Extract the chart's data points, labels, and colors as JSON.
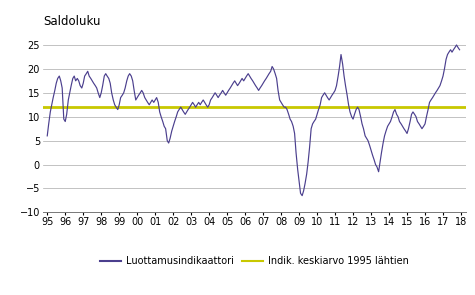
{
  "title": "Saldoluku",
  "xlim_left": 1994.75,
  "xlim_right": 2018.25,
  "ylim_bottom": -10,
  "ylim_top": 27,
  "mean_value": 12.1,
  "line_color": "#4B3F8E",
  "mean_color": "#C8C800",
  "background_color": "#ffffff",
  "grid_color": "#aaaaaa",
  "legend_label_line": "Luottamusindikaattori",
  "legend_label_mean": "Indik. keskiarvo 1995 lähtien",
  "yticks": [
    -10,
    -5,
    0,
    5,
    10,
    15,
    20,
    25
  ],
  "xtick_labels": [
    "95",
    "96",
    "97",
    "98",
    "99",
    "00",
    "01",
    "02",
    "03",
    "04",
    "05",
    "06",
    "07",
    "08",
    "09",
    "10",
    "11",
    "12",
    "13",
    "14",
    "15",
    "16",
    "17",
    "18"
  ],
  "xtick_years": [
    1995,
    1996,
    1997,
    1998,
    1999,
    2000,
    2001,
    2002,
    2003,
    2004,
    2005,
    2006,
    2007,
    2008,
    2009,
    2010,
    2011,
    2012,
    2013,
    2014,
    2015,
    2016,
    2017,
    2018
  ],
  "data": [
    [
      1995.0,
      6.0
    ],
    [
      1995.08,
      8.5
    ],
    [
      1995.17,
      11.0
    ],
    [
      1995.25,
      12.5
    ],
    [
      1995.33,
      14.0
    ],
    [
      1995.42,
      15.5
    ],
    [
      1995.5,
      17.0
    ],
    [
      1995.58,
      18.0
    ],
    [
      1995.67,
      18.5
    ],
    [
      1995.75,
      17.5
    ],
    [
      1995.83,
      16.0
    ],
    [
      1995.92,
      9.5
    ],
    [
      1996.0,
      9.0
    ],
    [
      1996.08,
      10.5
    ],
    [
      1996.17,
      13.5
    ],
    [
      1996.25,
      15.0
    ],
    [
      1996.33,
      16.5
    ],
    [
      1996.42,
      18.0
    ],
    [
      1996.5,
      18.5
    ],
    [
      1996.58,
      17.5
    ],
    [
      1996.67,
      18.0
    ],
    [
      1996.75,
      17.5
    ],
    [
      1996.83,
      16.5
    ],
    [
      1996.92,
      16.0
    ],
    [
      1997.0,
      17.0
    ],
    [
      1997.08,
      18.5
    ],
    [
      1997.17,
      19.0
    ],
    [
      1997.25,
      19.5
    ],
    [
      1997.33,
      18.5
    ],
    [
      1997.42,
      18.0
    ],
    [
      1997.5,
      17.5
    ],
    [
      1997.58,
      17.0
    ],
    [
      1997.67,
      16.5
    ],
    [
      1997.75,
      16.0
    ],
    [
      1997.83,
      15.0
    ],
    [
      1997.92,
      14.0
    ],
    [
      1998.0,
      15.0
    ],
    [
      1998.08,
      16.5
    ],
    [
      1998.17,
      18.5
    ],
    [
      1998.25,
      19.0
    ],
    [
      1998.33,
      18.5
    ],
    [
      1998.42,
      18.0
    ],
    [
      1998.5,
      17.0
    ],
    [
      1998.58,
      15.0
    ],
    [
      1998.67,
      13.5
    ],
    [
      1998.75,
      12.5
    ],
    [
      1998.83,
      12.0
    ],
    [
      1998.92,
      11.5
    ],
    [
      1999.0,
      12.5
    ],
    [
      1999.08,
      14.0
    ],
    [
      1999.17,
      14.5
    ],
    [
      1999.25,
      15.0
    ],
    [
      1999.33,
      16.0
    ],
    [
      1999.42,
      17.5
    ],
    [
      1999.5,
      18.5
    ],
    [
      1999.58,
      19.0
    ],
    [
      1999.67,
      18.5
    ],
    [
      1999.75,
      17.5
    ],
    [
      1999.83,
      15.5
    ],
    [
      1999.92,
      13.5
    ],
    [
      2000.0,
      14.0
    ],
    [
      2000.08,
      14.5
    ],
    [
      2000.17,
      15.0
    ],
    [
      2000.25,
      15.5
    ],
    [
      2000.33,
      15.0
    ],
    [
      2000.42,
      14.0
    ],
    [
      2000.5,
      13.5
    ],
    [
      2000.58,
      13.0
    ],
    [
      2000.67,
      12.5
    ],
    [
      2000.75,
      13.0
    ],
    [
      2000.83,
      13.5
    ],
    [
      2000.92,
      13.0
    ],
    [
      2001.0,
      13.5
    ],
    [
      2001.08,
      14.0
    ],
    [
      2001.17,
      13.0
    ],
    [
      2001.25,
      11.0
    ],
    [
      2001.33,
      10.0
    ],
    [
      2001.42,
      9.0
    ],
    [
      2001.5,
      8.0
    ],
    [
      2001.58,
      7.5
    ],
    [
      2001.67,
      5.0
    ],
    [
      2001.75,
      4.5
    ],
    [
      2001.83,
      5.5
    ],
    [
      2001.92,
      7.0
    ],
    [
      2002.0,
      8.0
    ],
    [
      2002.08,
      9.0
    ],
    [
      2002.17,
      10.0
    ],
    [
      2002.25,
      11.0
    ],
    [
      2002.33,
      11.5
    ],
    [
      2002.42,
      12.0
    ],
    [
      2002.5,
      11.5
    ],
    [
      2002.58,
      11.0
    ],
    [
      2002.67,
      10.5
    ],
    [
      2002.75,
      11.0
    ],
    [
      2002.83,
      11.5
    ],
    [
      2002.92,
      12.0
    ],
    [
      2003.0,
      12.5
    ],
    [
      2003.08,
      13.0
    ],
    [
      2003.17,
      12.5
    ],
    [
      2003.25,
      12.0
    ],
    [
      2003.33,
      12.5
    ],
    [
      2003.42,
      13.0
    ],
    [
      2003.5,
      12.5
    ],
    [
      2003.58,
      13.0
    ],
    [
      2003.67,
      13.5
    ],
    [
      2003.75,
      13.0
    ],
    [
      2003.83,
      12.5
    ],
    [
      2003.92,
      12.0
    ],
    [
      2004.0,
      12.5
    ],
    [
      2004.08,
      13.5
    ],
    [
      2004.17,
      14.0
    ],
    [
      2004.25,
      14.5
    ],
    [
      2004.33,
      15.0
    ],
    [
      2004.42,
      14.5
    ],
    [
      2004.5,
      14.0
    ],
    [
      2004.58,
      14.5
    ],
    [
      2004.67,
      15.0
    ],
    [
      2004.75,
      15.5
    ],
    [
      2004.83,
      15.0
    ],
    [
      2004.92,
      14.5
    ],
    [
      2005.0,
      15.0
    ],
    [
      2005.08,
      15.5
    ],
    [
      2005.17,
      16.0
    ],
    [
      2005.25,
      16.5
    ],
    [
      2005.33,
      17.0
    ],
    [
      2005.42,
      17.5
    ],
    [
      2005.5,
      17.0
    ],
    [
      2005.58,
      16.5
    ],
    [
      2005.67,
      17.0
    ],
    [
      2005.75,
      17.5
    ],
    [
      2005.83,
      18.0
    ],
    [
      2005.92,
      17.5
    ],
    [
      2006.0,
      18.0
    ],
    [
      2006.08,
      18.5
    ],
    [
      2006.17,
      19.0
    ],
    [
      2006.25,
      18.5
    ],
    [
      2006.33,
      18.0
    ],
    [
      2006.42,
      17.5
    ],
    [
      2006.5,
      17.0
    ],
    [
      2006.58,
      16.5
    ],
    [
      2006.67,
      16.0
    ],
    [
      2006.75,
      15.5
    ],
    [
      2006.83,
      16.0
    ],
    [
      2006.92,
      16.5
    ],
    [
      2007.0,
      17.0
    ],
    [
      2007.08,
      17.5
    ],
    [
      2007.17,
      18.0
    ],
    [
      2007.25,
      18.5
    ],
    [
      2007.33,
      19.0
    ],
    [
      2007.42,
      19.5
    ],
    [
      2007.5,
      20.5
    ],
    [
      2007.58,
      20.0
    ],
    [
      2007.67,
      19.0
    ],
    [
      2007.75,
      18.0
    ],
    [
      2007.83,
      15.5
    ],
    [
      2007.92,
      13.5
    ],
    [
      2008.0,
      13.0
    ],
    [
      2008.08,
      12.5
    ],
    [
      2008.17,
      12.0
    ],
    [
      2008.25,
      12.0
    ],
    [
      2008.33,
      11.5
    ],
    [
      2008.42,
      10.5
    ],
    [
      2008.5,
      9.5
    ],
    [
      2008.58,
      9.0
    ],
    [
      2008.67,
      8.0
    ],
    [
      2008.75,
      6.5
    ],
    [
      2008.83,
      2.5
    ],
    [
      2008.92,
      -1.0
    ],
    [
      2009.0,
      -3.5
    ],
    [
      2009.08,
      -6.0
    ],
    [
      2009.17,
      -6.5
    ],
    [
      2009.25,
      -5.5
    ],
    [
      2009.33,
      -4.0
    ],
    [
      2009.42,
      -2.0
    ],
    [
      2009.5,
      0.5
    ],
    [
      2009.58,
      3.5
    ],
    [
      2009.67,
      7.5
    ],
    [
      2009.75,
      8.5
    ],
    [
      2009.83,
      9.0
    ],
    [
      2009.92,
      9.5
    ],
    [
      2010.0,
      10.5
    ],
    [
      2010.08,
      11.5
    ],
    [
      2010.17,
      12.5
    ],
    [
      2010.25,
      14.0
    ],
    [
      2010.33,
      14.5
    ],
    [
      2010.42,
      15.0
    ],
    [
      2010.5,
      14.5
    ],
    [
      2010.58,
      14.0
    ],
    [
      2010.67,
      13.5
    ],
    [
      2010.75,
      14.0
    ],
    [
      2010.83,
      14.5
    ],
    [
      2010.92,
      15.0
    ],
    [
      2011.0,
      15.5
    ],
    [
      2011.08,
      16.5
    ],
    [
      2011.17,
      18.5
    ],
    [
      2011.25,
      20.5
    ],
    [
      2011.33,
      23.0
    ],
    [
      2011.42,
      21.0
    ],
    [
      2011.5,
      18.5
    ],
    [
      2011.58,
      16.5
    ],
    [
      2011.67,
      14.5
    ],
    [
      2011.75,
      12.5
    ],
    [
      2011.83,
      11.0
    ],
    [
      2011.92,
      10.0
    ],
    [
      2012.0,
      9.5
    ],
    [
      2012.08,
      10.5
    ],
    [
      2012.17,
      11.5
    ],
    [
      2012.25,
      12.0
    ],
    [
      2012.33,
      11.5
    ],
    [
      2012.42,
      10.0
    ],
    [
      2012.5,
      8.5
    ],
    [
      2012.58,
      7.5
    ],
    [
      2012.67,
      6.0
    ],
    [
      2012.75,
      5.5
    ],
    [
      2012.83,
      5.0
    ],
    [
      2012.92,
      4.0
    ],
    [
      2013.0,
      3.0
    ],
    [
      2013.08,
      2.0
    ],
    [
      2013.17,
      1.0
    ],
    [
      2013.25,
      0.0
    ],
    [
      2013.33,
      -0.5
    ],
    [
      2013.42,
      -1.5
    ],
    [
      2013.5,
      0.5
    ],
    [
      2013.58,
      2.5
    ],
    [
      2013.67,
      4.5
    ],
    [
      2013.75,
      6.0
    ],
    [
      2013.83,
      7.0
    ],
    [
      2013.92,
      8.0
    ],
    [
      2014.0,
      8.5
    ],
    [
      2014.08,
      9.0
    ],
    [
      2014.17,
      10.0
    ],
    [
      2014.25,
      11.0
    ],
    [
      2014.33,
      11.5
    ],
    [
      2014.42,
      10.5
    ],
    [
      2014.5,
      10.0
    ],
    [
      2014.58,
      9.0
    ],
    [
      2014.67,
      8.5
    ],
    [
      2014.75,
      8.0
    ],
    [
      2014.83,
      7.5
    ],
    [
      2014.92,
      7.0
    ],
    [
      2015.0,
      6.5
    ],
    [
      2015.08,
      7.5
    ],
    [
      2015.17,
      9.0
    ],
    [
      2015.25,
      10.5
    ],
    [
      2015.33,
      11.0
    ],
    [
      2015.42,
      10.5
    ],
    [
      2015.5,
      10.0
    ],
    [
      2015.58,
      9.0
    ],
    [
      2015.67,
      8.5
    ],
    [
      2015.75,
      8.0
    ],
    [
      2015.83,
      7.5
    ],
    [
      2015.92,
      8.0
    ],
    [
      2016.0,
      8.5
    ],
    [
      2016.08,
      10.0
    ],
    [
      2016.17,
      11.5
    ],
    [
      2016.25,
      13.0
    ],
    [
      2016.33,
      13.5
    ],
    [
      2016.42,
      14.0
    ],
    [
      2016.5,
      14.5
    ],
    [
      2016.58,
      15.0
    ],
    [
      2016.67,
      15.5
    ],
    [
      2016.75,
      16.0
    ],
    [
      2016.83,
      16.5
    ],
    [
      2016.92,
      17.5
    ],
    [
      2017.0,
      18.5
    ],
    [
      2017.08,
      20.0
    ],
    [
      2017.17,
      22.0
    ],
    [
      2017.25,
      23.0
    ],
    [
      2017.33,
      23.5
    ],
    [
      2017.42,
      24.0
    ],
    [
      2017.5,
      23.5
    ],
    [
      2017.58,
      24.0
    ],
    [
      2017.67,
      24.5
    ],
    [
      2017.75,
      25.0
    ],
    [
      2017.83,
      24.5
    ],
    [
      2017.92,
      24.0
    ]
  ]
}
